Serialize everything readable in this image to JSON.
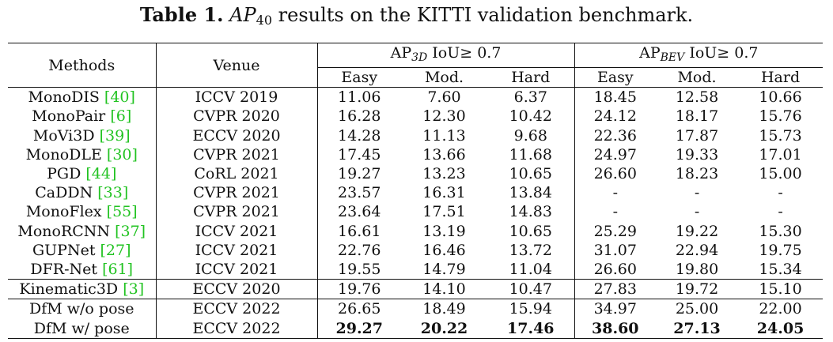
{
  "caption": {
    "label": "Table 1.",
    "metric": "AP",
    "metric_sub": "40",
    "text": "results on the KITTI validation benchmark."
  },
  "header": {
    "methods": "Methods",
    "venue": "Venue",
    "group1": {
      "prefix": "AP",
      "sub": "3D",
      "suffix": "IoU≥ 0.7"
    },
    "group2": {
      "prefix": "AP",
      "sub": "BEV",
      "suffix": "IoU≥ 0.7"
    },
    "sub_columns": [
      "Easy",
      "Mod.",
      "Hard",
      "Easy",
      "Mod.",
      "Hard"
    ]
  },
  "rows": [
    {
      "method": "MonoDIS",
      "cite": "[40]",
      "venue": "ICCV 2019",
      "values": [
        "11.06",
        "7.60",
        "6.37",
        "18.45",
        "12.58",
        "10.66"
      ]
    },
    {
      "method": "MonoPair",
      "cite": "[6]",
      "venue": "CVPR 2020",
      "values": [
        "16.28",
        "12.30",
        "10.42",
        "24.12",
        "18.17",
        "15.76"
      ]
    },
    {
      "method": "MoVi3D",
      "cite": "[39]",
      "venue": "ECCV 2020",
      "values": [
        "14.28",
        "11.13",
        "9.68",
        "22.36",
        "17.87",
        "15.73"
      ]
    },
    {
      "method": "MonoDLE",
      "cite": "[30]",
      "venue": "CVPR 2021",
      "values": [
        "17.45",
        "13.66",
        "11.68",
        "24.97",
        "19.33",
        "17.01"
      ]
    },
    {
      "method": "PGD",
      "cite": "[44]",
      "venue": "CoRL 2021",
      "values": [
        "19.27",
        "13.23",
        "10.65",
        "26.60",
        "18.23",
        "15.00"
      ]
    },
    {
      "method": "CaDDN",
      "cite": "[33]",
      "venue": "CVPR 2021",
      "values": [
        "23.57",
        "16.31",
        "13.84",
        "-",
        "-",
        "-"
      ]
    },
    {
      "method": "MonoFlex",
      "cite": "[55]",
      "venue": "CVPR 2021",
      "values": [
        "23.64",
        "17.51",
        "14.83",
        "-",
        "-",
        "-"
      ]
    },
    {
      "method": "MonoRCNN",
      "cite": "[37]",
      "venue": "ICCV 2021",
      "values": [
        "16.61",
        "13.19",
        "10.65",
        "25.29",
        "19.22",
        "15.30"
      ]
    },
    {
      "method": "GUPNet",
      "cite": "[27]",
      "venue": "ICCV 2021",
      "values": [
        "22.76",
        "16.46",
        "13.72",
        "31.07",
        "22.94",
        "19.75"
      ]
    },
    {
      "method": "DFR-Net",
      "cite": "[61]",
      "venue": "ICCV 2021",
      "values": [
        "19.55",
        "14.79",
        "11.04",
        "26.60",
        "19.80",
        "15.34"
      ]
    },
    {
      "method": "Kinematic3D",
      "cite": "[3]",
      "venue": "ECCV 2020",
      "values": [
        "19.76",
        "14.10",
        "10.47",
        "27.83",
        "19.72",
        "15.10"
      ]
    },
    {
      "method": "DfM w/o pose",
      "cite": "",
      "venue": "ECCV 2022",
      "values": [
        "26.65",
        "18.49",
        "15.94",
        "34.97",
        "25.00",
        "22.00"
      ]
    },
    {
      "method": "DfM w/ pose",
      "cite": "",
      "venue": "ECCV 2022",
      "values": [
        "29.27",
        "20.22",
        "17.46",
        "38.60",
        "27.13",
        "24.05"
      ]
    }
  ]
}
